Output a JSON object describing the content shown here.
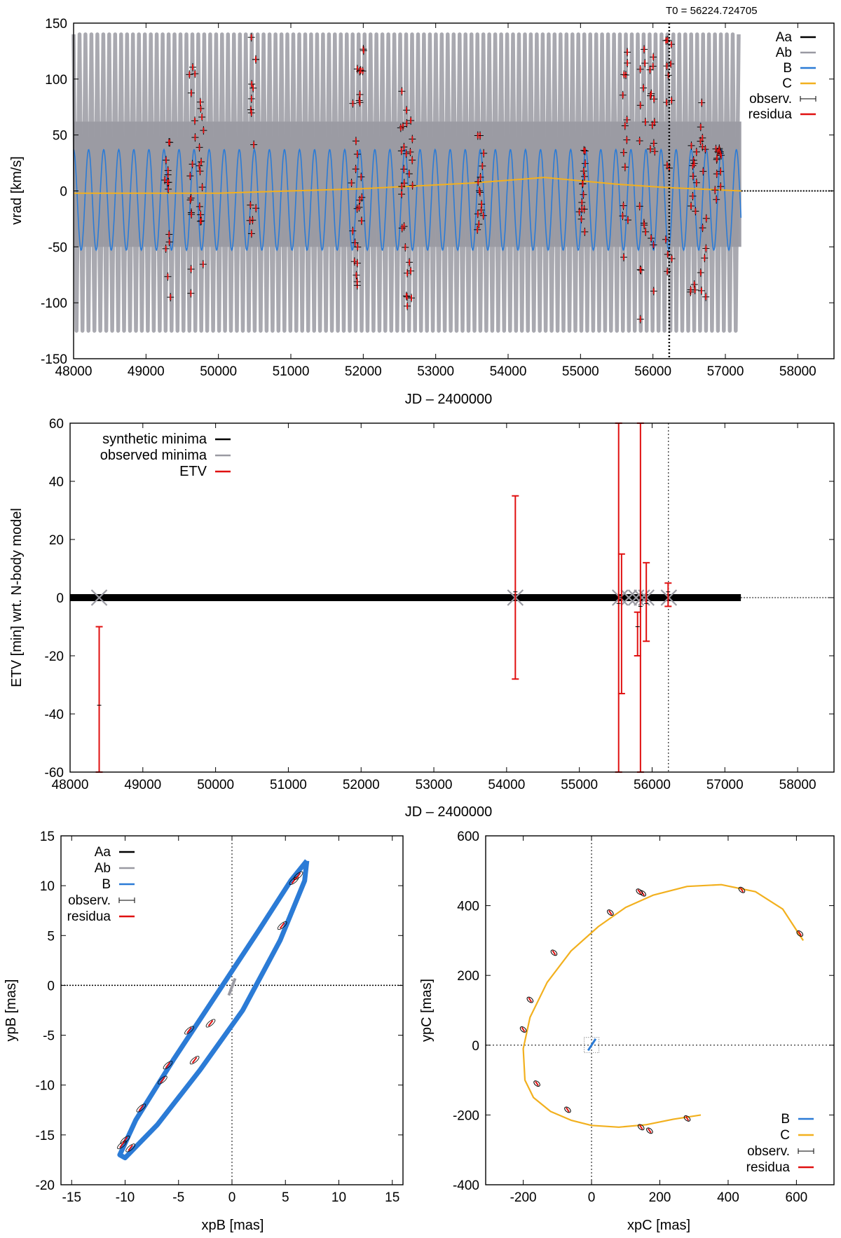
{
  "colors": {
    "Aa": "#000000",
    "Ab": "#9a9aa2",
    "B": "#2b7bd6",
    "C": "#f2b01e",
    "obs": "#000000",
    "residua": "#e01010",
    "obsMinima": "#9a9aa2"
  },
  "chart_data": [
    {
      "type": "line",
      "id": "rv",
      "title": "",
      "annotation": "T0 = 56224.724705",
      "t0": 56224.724705,
      "xlabel": "JD – 2400000",
      "ylabel": "vrad [km/s]",
      "xlim": [
        48000,
        58500
      ],
      "ylim": [
        -150,
        150
      ],
      "xticks": [
        48000,
        49000,
        50000,
        51000,
        52000,
        53000,
        54000,
        55000,
        56000,
        57000,
        58000
      ],
      "yticks": [
        -150,
        -100,
        -50,
        0,
        50,
        100,
        150
      ],
      "xtick_labels": [
        "48000",
        "49000",
        "50000",
        "51000",
        "52000",
        "53000",
        "54000",
        "55000",
        "56000",
        "57000",
        "58000"
      ],
      "ytick_labels": [
        "-150",
        "-100",
        "-50",
        "0",
        "50",
        "100",
        "150"
      ],
      "legend": [
        {
          "label": "Aa",
          "color": "#000000"
        },
        {
          "label": "Ab",
          "color": "#9a9aa2"
        },
        {
          "label": "B",
          "color": "#2b7bd6"
        },
        {
          "label": "C",
          "color": "#f2b01e"
        },
        {
          "label": "observ.",
          "color": "#000000"
        },
        {
          "label": "residua",
          "color": "#e01010"
        }
      ],
      "series": [
        {
          "name": "Ab",
          "envelope": {
            "upper": [
              62,
              140
            ],
            "lower": [
              -125,
              -50
            ]
          },
          "x_end": 57220
        },
        {
          "name": "B",
          "amplitude": 45,
          "offset": -8,
          "x_end": 57220
        },
        {
          "name": "C",
          "x": [
            48000,
            50000,
            52000,
            53500,
            54500,
            55500,
            56200,
            57220
          ],
          "y": [
            -2,
            -2,
            2,
            7,
            12,
            6,
            3,
            0
          ]
        }
      ],
      "observation_clusters": [
        {
          "jd": 49300,
          "vmin": -95,
          "vmax": 55
        },
        {
          "jd": 49640,
          "vmin": -105,
          "vmax": 125
        },
        {
          "jd": 49760,
          "vmin": -85,
          "vmax": 90
        },
        {
          "jd": 50480,
          "vmin": -40,
          "vmax": 138
        },
        {
          "jd": 51880,
          "vmin": -85,
          "vmax": 100
        },
        {
          "jd": 51960,
          "vmin": -50,
          "vmax": 128
        },
        {
          "jd": 52560,
          "vmin": -90,
          "vmax": 105
        },
        {
          "jd": 52640,
          "vmin": -110,
          "vmax": 80
        },
        {
          "jd": 53620,
          "vmin": -35,
          "vmax": 50
        },
        {
          "jd": 55020,
          "vmin": -60,
          "vmax": 40
        },
        {
          "jd": 55620,
          "vmin": -110,
          "vmax": 135
        },
        {
          "jd": 55860,
          "vmin": -115,
          "vmax": 140
        },
        {
          "jd": 56000,
          "vmin": -100,
          "vmax": 130
        },
        {
          "jd": 56220,
          "vmin": -90,
          "vmax": 145
        },
        {
          "jd": 56560,
          "vmin": -100,
          "vmax": 75
        },
        {
          "jd": 56700,
          "vmin": -95,
          "vmax": 80
        },
        {
          "jd": 56900,
          "vmin": -10,
          "vmax": 45
        }
      ]
    },
    {
      "type": "scatter",
      "id": "etv",
      "title": "",
      "xlabel": "JD – 2400000",
      "ylabel": "ETV [min] wrt. N-body model",
      "xlim": [
        48000,
        58500
      ],
      "ylim": [
        -60,
        60
      ],
      "xticks": [
        48000,
        49000,
        50000,
        51000,
        52000,
        53000,
        54000,
        55000,
        56000,
        57000,
        58000
      ],
      "yticks": [
        -60,
        -40,
        -20,
        0,
        20,
        40,
        60
      ],
      "xtick_labels": [
        "48000",
        "49000",
        "50000",
        "51000",
        "52000",
        "53000",
        "54000",
        "55000",
        "56000",
        "57000",
        "58000"
      ],
      "ytick_labels": [
        "-60",
        "-40",
        "-20",
        "0",
        "20",
        "40",
        "60"
      ],
      "legend": [
        {
          "label": "synthetic minima",
          "color": "#000000"
        },
        {
          "label": "observed minima",
          "color": "#9a9aa2"
        },
        {
          "label": "ETV",
          "color": "#e01010"
        }
      ],
      "synthetic_minima_span": [
        48000,
        57220
      ],
      "observed_minima_x": [
        48400,
        54120,
        55560,
        55680,
        55780,
        55860,
        55920,
        56230
      ],
      "etv_bars": [
        {
          "x": 48400,
          "y": -37,
          "lo": -60,
          "hi": -10
        },
        {
          "x": 54120,
          "y": 2,
          "lo": -28,
          "hi": 35
        },
        {
          "x": 55540,
          "y": -2,
          "lo": -60,
          "hi": 60
        },
        {
          "x": 55580,
          "y": 0,
          "lo": -33,
          "hi": 15
        },
        {
          "x": 55840,
          "y": -3,
          "lo": -60,
          "hi": 60
        },
        {
          "x": 55800,
          "y": -10,
          "lo": -20,
          "hi": -5
        },
        {
          "x": 55920,
          "y": -2,
          "lo": -15,
          "hi": 12
        },
        {
          "x": 56220,
          "y": 2,
          "lo": -3,
          "hi": 5
        }
      ]
    },
    {
      "type": "line",
      "id": "orbitB",
      "title": "",
      "xlabel": "xpB [mas]",
      "ylabel": "ypB [mas]",
      "xlim": [
        -16,
        16
      ],
      "ylim": [
        -20,
        15
      ],
      "xticks": [
        -15,
        -10,
        -5,
        0,
        5,
        10,
        15
      ],
      "yticks": [
        -20,
        -15,
        -10,
        -5,
        0,
        5,
        10,
        15
      ],
      "xtick_labels": [
        "-15",
        "-10",
        "-5",
        "0",
        "5",
        "10",
        "15"
      ],
      "ytick_labels": [
        "-20",
        "-15",
        "-10",
        "-5",
        "0",
        "5",
        "10",
        "15"
      ],
      "legend": [
        {
          "label": "Aa",
          "color": "#000000"
        },
        {
          "label": "Ab",
          "color": "#9a9aa2"
        },
        {
          "label": "B",
          "color": "#2b7bd6"
        },
        {
          "label": "observ.",
          "color": "#000000"
        },
        {
          "label": "residua",
          "color": "#e01010"
        }
      ],
      "orbit": {
        "x": [
          7.0,
          5.5,
          2.5,
          -1.5,
          -5.5,
          -9.0,
          -10.5,
          -10.0,
          -7.0,
          -3.0,
          1.0,
          4.5,
          6.8,
          7.0
        ],
        "y": [
          12.5,
          10.5,
          5.5,
          -1.0,
          -7.5,
          -13.5,
          -17.0,
          -17.3,
          -14.0,
          -8.5,
          -2.5,
          4.5,
          10.5,
          12.5
        ]
      },
      "observations": [
        {
          "x": 5.8,
          "y": 10.5
        },
        {
          "x": 6.2,
          "y": 11.0
        },
        {
          "x": 4.7,
          "y": 6.0
        },
        {
          "x": -2.0,
          "y": -3.8
        },
        {
          "x": -4.0,
          "y": -4.5
        },
        {
          "x": -3.5,
          "y": -7.5
        },
        {
          "x": -6.0,
          "y": -8.0
        },
        {
          "x": -6.5,
          "y": -9.5
        },
        {
          "x": -8.5,
          "y": -12.3
        },
        {
          "x": -10.0,
          "y": -15.5
        },
        {
          "x": -9.5,
          "y": -16.3
        },
        {
          "x": -10.3,
          "y": -16.0
        }
      ]
    },
    {
      "type": "line",
      "id": "orbitC",
      "title": "",
      "xlabel": "xpC [mas]",
      "ylabel": "ypC [mas]",
      "xlim": [
        -310,
        710
      ],
      "ylim": [
        -400,
        600
      ],
      "xticks": [
        -200,
        0,
        200,
        400,
        600
      ],
      "yticks": [
        -400,
        -200,
        0,
        200,
        400,
        600
      ],
      "xtick_labels": [
        "-200",
        "0",
        "200",
        "400",
        "600"
      ],
      "ytick_labels": [
        "-400",
        "-200",
        "0",
        "200",
        "400",
        "600"
      ],
      "legend": [
        {
          "label": "B",
          "color": "#2b7bd6"
        },
        {
          "label": "C",
          "color": "#f2b01e"
        },
        {
          "label": "observ.",
          "color": "#000000"
        },
        {
          "label": "residua",
          "color": "#e01010"
        }
      ],
      "orbit": {
        "x": [
          620,
          560,
          480,
          380,
          280,
          180,
          100,
          20,
          -60,
          -130,
          -180,
          -200,
          -195,
          -170,
          -120,
          -60,
          0,
          80,
          160,
          240,
          320
        ],
        "y": [
          300,
          390,
          440,
          460,
          455,
          430,
          395,
          340,
          270,
          180,
          80,
          -10,
          -100,
          -150,
          -190,
          -215,
          -230,
          -235,
          -228,
          -212,
          -200
        ]
      },
      "observations": [
        {
          "x": 610,
          "y": 320
        },
        {
          "x": 440,
          "y": 445
        },
        {
          "x": 150,
          "y": 435
        },
        {
          "x": 140,
          "y": 440
        },
        {
          "x": 55,
          "y": 380
        },
        {
          "x": -110,
          "y": 265
        },
        {
          "x": -180,
          "y": 130
        },
        {
          "x": -200,
          "y": 45
        },
        {
          "x": -160,
          "y": -110
        },
        {
          "x": -70,
          "y": -185
        },
        {
          "x": 145,
          "y": -235
        },
        {
          "x": 170,
          "y": -245
        },
        {
          "x": 280,
          "y": -210
        }
      ],
      "inner_segment": {
        "x": [
          -10,
          12
        ],
        "y": [
          -15,
          18
        ]
      }
    }
  ]
}
